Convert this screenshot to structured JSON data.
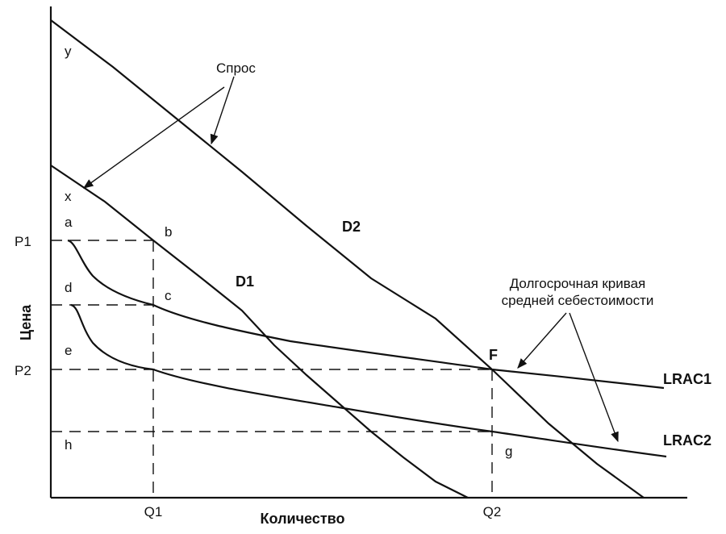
{
  "axes": {
    "y_title": "Цена",
    "x_title": "Количество",
    "y_ticks": {
      "p1": "P1",
      "p2": "P2"
    },
    "x_ticks": {
      "q1": "Q1",
      "q2": "Q2"
    }
  },
  "curves": {
    "d1": "D1",
    "d2": "D2",
    "lrac1": "LRAC1",
    "lrac2": "LRAC2"
  },
  "annotations": {
    "demand": "Спрос",
    "lrac_note_line1": "Долгосрочная кривая",
    "lrac_note_line2": "средней себестоимости"
  },
  "points": {
    "a": "a",
    "b": "b",
    "c": "c",
    "d": "d",
    "e": "e",
    "f": "F",
    "g": "g",
    "h": "h",
    "x": "x",
    "y": "y"
  }
}
